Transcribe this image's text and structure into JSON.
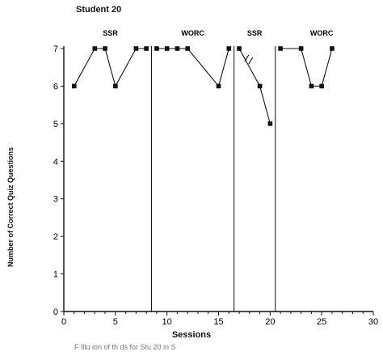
{
  "chart_data": {
    "type": "line",
    "title": "Student 20",
    "xlabel": "Sessions",
    "ylabel": "Number of Correct Quiz Questions",
    "xlim": [
      0,
      30
    ],
    "ylim": [
      0,
      7
    ],
    "xticks": [
      0,
      5,
      10,
      15,
      20,
      25,
      30
    ],
    "yticks": [
      0,
      1,
      2,
      3,
      4,
      5,
      6,
      7
    ],
    "grid": false,
    "legend": "none",
    "phase_lines": [
      8.5,
      16.5,
      20.5
    ],
    "phases": [
      {
        "label": "SSR",
        "x": 4.5
      },
      {
        "label": "WORC",
        "x": 12.5
      },
      {
        "label": "SSR",
        "x": 18.5
      },
      {
        "label": "WORC",
        "x": 25.0
      }
    ],
    "series": [
      {
        "x": [
          1,
          3,
          4,
          5,
          7,
          8
        ],
        "y": [
          6,
          7,
          7,
          6,
          7,
          7
        ]
      },
      {
        "x": [
          9,
          10,
          11,
          12,
          15,
          16
        ],
        "y": [
          7,
          7,
          7,
          7,
          6,
          7
        ]
      },
      {
        "x": [
          17,
          19,
          20
        ],
        "y": [
          7,
          6,
          5
        ]
      },
      {
        "x": [
          21,
          23,
          24,
          25,
          26
        ],
        "y": [
          7,
          7,
          6,
          6,
          7
        ]
      }
    ],
    "break_marker": {
      "x": 18.0,
      "y": 6.7
    }
  },
  "caption": "F      Illu  ion of th                                       ds for Stu   20 in S"
}
